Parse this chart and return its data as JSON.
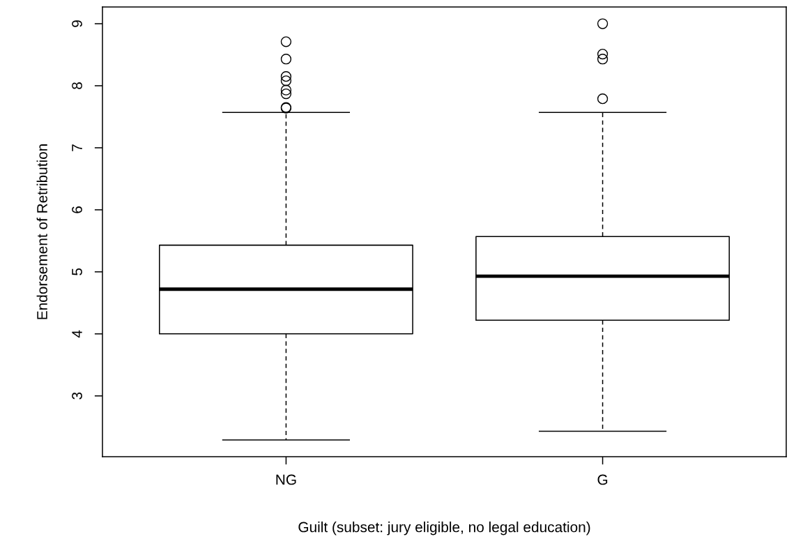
{
  "chart_data": {
    "type": "box",
    "xlabel": "Guilt (subset: jury eligible, no legal education)",
    "ylabel": "Endorsement of Retribution",
    "categories": [
      "NG",
      "G"
    ],
    "boxes": [
      {
        "low": 2.29,
        "q1": 4.0,
        "median": 4.72,
        "q3": 5.43,
        "high": 7.57,
        "outliers": [
          8.71,
          8.43,
          8.15,
          8.08,
          7.93,
          7.87,
          7.65,
          7.64
        ]
      },
      {
        "low": 2.43,
        "q1": 4.22,
        "median": 4.93,
        "q3": 5.57,
        "high": 7.57,
        "outliers": [
          9.0,
          8.51,
          8.43,
          7.79
        ]
      }
    ],
    "ylim": [
      2.02,
      9.27
    ],
    "yticks": [
      3,
      4,
      5,
      6,
      7,
      8,
      9
    ],
    "grid": false,
    "legend": false,
    "marker": "circle"
  }
}
